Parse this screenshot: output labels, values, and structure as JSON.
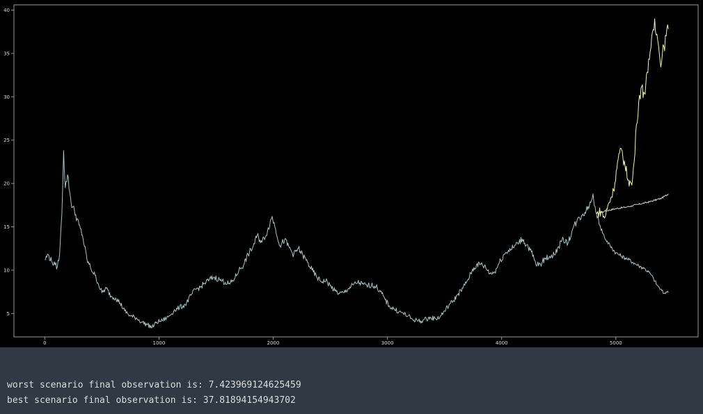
{
  "chart_data": {
    "type": "line",
    "title": "",
    "xlabel": "",
    "ylabel": "",
    "xlim": [
      -270,
      5720
    ],
    "ylim": [
      2.3,
      40.6
    ],
    "x_ticks": [
      0,
      1000,
      2000,
      3000,
      4000,
      5000
    ],
    "y_ticks": [
      5,
      10,
      15,
      20,
      25,
      30,
      35,
      40
    ],
    "grid": false,
    "legend": "none",
    "colors": {
      "history": "#a9c4c4",
      "best": "#f4f2b0",
      "median": "#c8d2c8",
      "worst": "#a9c4c4"
    },
    "series": [
      {
        "key": "history",
        "points": [
          [
            0,
            11.2
          ],
          [
            30,
            11.8
          ],
          [
            60,
            11.0
          ],
          [
            90,
            10.6
          ],
          [
            110,
            10.4
          ],
          [
            130,
            11.8
          ],
          [
            150,
            16.5
          ],
          [
            165,
            23.8
          ],
          [
            180,
            19.5
          ],
          [
            200,
            21.0
          ],
          [
            230,
            17.8
          ],
          [
            260,
            16.8
          ],
          [
            300,
            15.2
          ],
          [
            330,
            14.0
          ],
          [
            370,
            11.2
          ],
          [
            400,
            10.3
          ],
          [
            440,
            9.4
          ],
          [
            470,
            8.4
          ],
          [
            500,
            7.4
          ],
          [
            540,
            7.9
          ],
          [
            580,
            7.0
          ],
          [
            620,
            6.8
          ],
          [
            660,
            6.2
          ],
          [
            700,
            5.3
          ],
          [
            750,
            4.7
          ],
          [
            800,
            4.5
          ],
          [
            850,
            4.0
          ],
          [
            900,
            3.7
          ],
          [
            940,
            3.4
          ],
          [
            980,
            4.0
          ],
          [
            1030,
            4.2
          ],
          [
            1080,
            4.6
          ],
          [
            1130,
            5.3
          ],
          [
            1180,
            5.7
          ],
          [
            1230,
            6.0
          ],
          [
            1280,
            7.1
          ],
          [
            1320,
            7.8
          ],
          [
            1360,
            8.0
          ],
          [
            1400,
            8.5
          ],
          [
            1440,
            8.9
          ],
          [
            1480,
            9.2
          ],
          [
            1530,
            8.9
          ],
          [
            1580,
            8.6
          ],
          [
            1620,
            8.4
          ],
          [
            1660,
            9.0
          ],
          [
            1700,
            10.0
          ],
          [
            1740,
            10.6
          ],
          [
            1780,
            11.8
          ],
          [
            1820,
            12.6
          ],
          [
            1860,
            14.0
          ],
          [
            1900,
            13.2
          ],
          [
            1950,
            14.5
          ],
          [
            1990,
            16.2
          ],
          [
            2020,
            14.8
          ],
          [
            2060,
            12.8
          ],
          [
            2100,
            13.5
          ],
          [
            2140,
            12.6
          ],
          [
            2180,
            11.8
          ],
          [
            2220,
            12.5
          ],
          [
            2260,
            11.7
          ],
          [
            2300,
            10.9
          ],
          [
            2340,
            10.0
          ],
          [
            2380,
            9.2
          ],
          [
            2420,
            8.7
          ],
          [
            2460,
            8.8
          ],
          [
            2500,
            8.2
          ],
          [
            2540,
            7.6
          ],
          [
            2580,
            7.3
          ],
          [
            2620,
            7.4
          ],
          [
            2660,
            7.9
          ],
          [
            2700,
            8.3
          ],
          [
            2740,
            8.6
          ],
          [
            2780,
            8.4
          ],
          [
            2820,
            8.2
          ],
          [
            2860,
            8.3
          ],
          [
            2900,
            8.1
          ],
          [
            2940,
            7.5
          ],
          [
            2980,
            6.6
          ],
          [
            3020,
            5.8
          ],
          [
            3060,
            5.5
          ],
          [
            3100,
            5.2
          ],
          [
            3140,
            5.0
          ],
          [
            3180,
            4.7
          ],
          [
            3220,
            4.3
          ],
          [
            3260,
            4.2
          ],
          [
            3300,
            4.1
          ],
          [
            3340,
            4.4
          ],
          [
            3380,
            4.5
          ],
          [
            3420,
            4.4
          ],
          [
            3460,
            4.6
          ],
          [
            3500,
            5.3
          ],
          [
            3540,
            6.0
          ],
          [
            3580,
            6.5
          ],
          [
            3620,
            7.3
          ],
          [
            3660,
            7.9
          ],
          [
            3700,
            8.8
          ],
          [
            3740,
            9.9
          ],
          [
            3780,
            10.6
          ],
          [
            3820,
            10.7
          ],
          [
            3860,
            10.3
          ],
          [
            3900,
            9.6
          ],
          [
            3940,
            9.8
          ],
          [
            3980,
            10.9
          ],
          [
            4020,
            11.8
          ],
          [
            4060,
            12.3
          ],
          [
            4100,
            12.6
          ],
          [
            4140,
            13.1
          ],
          [
            4180,
            13.6
          ],
          [
            4220,
            12.9
          ],
          [
            4260,
            12.1
          ],
          [
            4300,
            10.6
          ],
          [
            4340,
            10.7
          ],
          [
            4380,
            11.3
          ],
          [
            4420,
            11.6
          ],
          [
            4460,
            11.8
          ],
          [
            4500,
            12.7
          ],
          [
            4540,
            13.6
          ],
          [
            4580,
            13.1
          ],
          [
            4620,
            14.7
          ],
          [
            4660,
            15.7
          ],
          [
            4700,
            16.3
          ],
          [
            4740,
            16.9
          ],
          [
            4780,
            17.8
          ],
          [
            4800,
            18.8
          ],
          [
            4830,
            16.5
          ]
        ]
      },
      {
        "key": "best",
        "points": [
          [
            4830,
            16.5
          ],
          [
            4870,
            16.8
          ],
          [
            4900,
            16.0
          ],
          [
            4940,
            17.8
          ],
          [
            4980,
            19.2
          ],
          [
            5020,
            22.8
          ],
          [
            5050,
            23.9
          ],
          [
            5080,
            22.0
          ],
          [
            5110,
            20.4
          ],
          [
            5140,
            19.8
          ],
          [
            5160,
            22.5
          ],
          [
            5180,
            26.8
          ],
          [
            5200,
            29.5
          ],
          [
            5220,
            31.0
          ],
          [
            5250,
            30.4
          ],
          [
            5280,
            32.8
          ],
          [
            5300,
            35.2
          ],
          [
            5320,
            37.5
          ],
          [
            5340,
            39.0
          ],
          [
            5360,
            37.2
          ],
          [
            5380,
            35.0
          ],
          [
            5400,
            34.0
          ],
          [
            5420,
            35.8
          ],
          [
            5440,
            37.0
          ],
          [
            5460,
            37.8
          ]
        ]
      },
      {
        "key": "median",
        "points": [
          [
            4830,
            16.5
          ],
          [
            4900,
            16.8
          ],
          [
            5000,
            17.1
          ],
          [
            5100,
            17.3
          ],
          [
            5200,
            17.6
          ],
          [
            5300,
            17.9
          ],
          [
            5400,
            18.3
          ],
          [
            5460,
            18.8
          ]
        ]
      },
      {
        "key": "worst",
        "points": [
          [
            4830,
            16.5
          ],
          [
            4860,
            15.2
          ],
          [
            4900,
            13.8
          ],
          [
            4950,
            12.8
          ],
          [
            5000,
            12.0
          ],
          [
            5050,
            11.6
          ],
          [
            5100,
            11.3
          ],
          [
            5150,
            10.9
          ],
          [
            5200,
            10.5
          ],
          [
            5250,
            10.2
          ],
          [
            5300,
            9.6
          ],
          [
            5330,
            9.0
          ],
          [
            5360,
            8.3
          ],
          [
            5390,
            7.8
          ],
          [
            5420,
            7.3
          ],
          [
            5440,
            7.5
          ],
          [
            5460,
            7.42
          ]
        ]
      }
    ]
  },
  "output": {
    "worst_line": "worst scenario final observation is: 7.423969124625459",
    "best_line": "best scenario final observation is: 37.81894154943702"
  }
}
